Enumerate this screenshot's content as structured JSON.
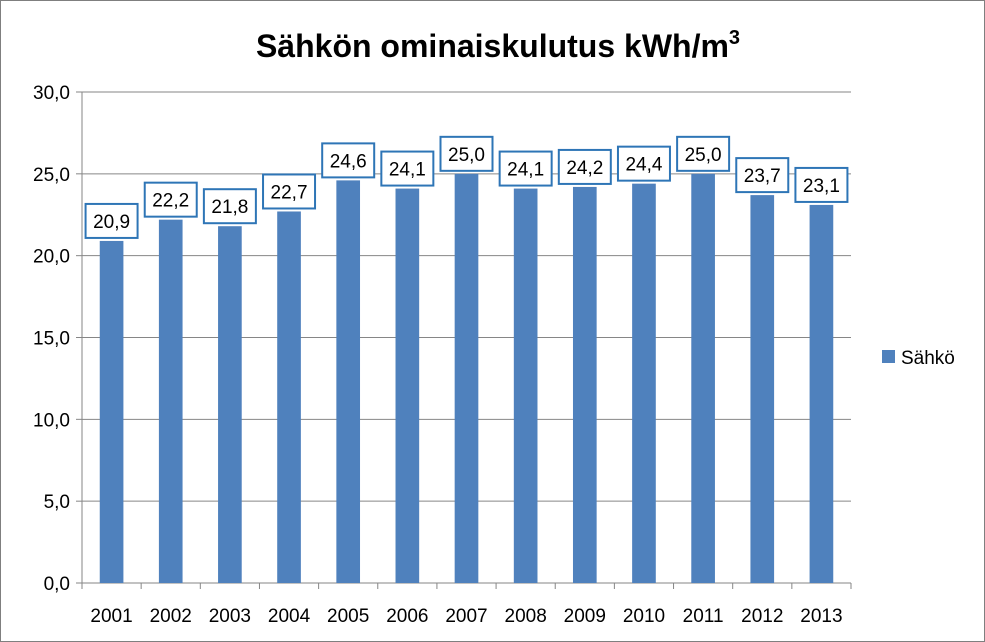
{
  "chart_data": {
    "type": "bar",
    "title": "Sähkön ominaiskulutus kWh/m",
    "title_superscript": "3",
    "xlabel": "",
    "ylabel": "",
    "categories": [
      "2001",
      "2002",
      "2003",
      "2004",
      "2005",
      "2006",
      "2007",
      "2008",
      "2009",
      "2010",
      "2011",
      "2012",
      "2013"
    ],
    "series": [
      {
        "name": "Sähkö",
        "values": [
          20.9,
          22.2,
          21.8,
          22.7,
          24.6,
          24.1,
          25.0,
          24.1,
          24.2,
          24.4,
          25.0,
          23.7,
          23.1
        ],
        "labels": [
          "20,9",
          "22,2",
          "21,8",
          "22,7",
          "24,6",
          "24,1",
          "25,0",
          "24,1",
          "24,2",
          "24,4",
          "25,0",
          "23,7",
          "23,1"
        ],
        "color": "#4f81bd"
      }
    ],
    "ylim": [
      0,
      30
    ],
    "y_ticks": [
      "0,0",
      "5,0",
      "10,0",
      "15,0",
      "20,0",
      "25,0",
      "30,0"
    ],
    "grid": true,
    "legend_position": "right",
    "label_border_color": "#2e75b6"
  }
}
